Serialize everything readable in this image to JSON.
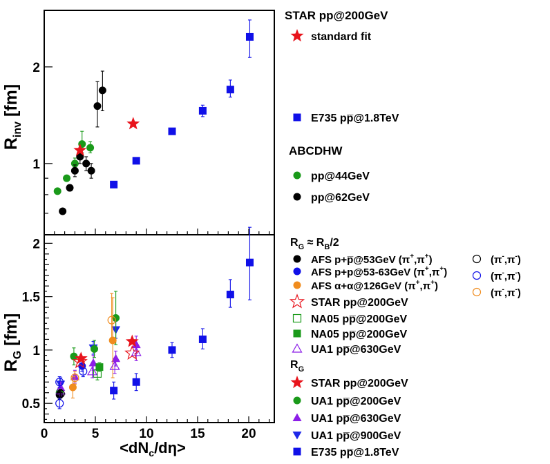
{
  "colors": {
    "star": "#e8141c",
    "green": "#1a9a1a",
    "black": "#000000",
    "blue": "#1010e8",
    "orange": "#f08c1e",
    "violet": "#8c1ee8",
    "vblue": "#1e28e8"
  },
  "chart_data": [
    {
      "type": "scatter",
      "y_scale": "log",
      "xlim": [
        0,
        22.5
      ],
      "ylim": [
        0.6,
        3.0
      ],
      "ylabel_main": "R",
      "ylabel_sub": "inv",
      "ylabel_unit": " [fm]",
      "y_ticks": [
        {
          "value": 1,
          "label": "1"
        },
        {
          "value": 2,
          "label": "2"
        }
      ],
      "series": [
        {
          "key": "e735",
          "marker": "square",
          "color": "blue",
          "points": [
            [
              6.8,
              0.86,
              0,
              0
            ],
            [
              9.0,
              1.02,
              0.02,
              0.02
            ],
            [
              12.5,
              1.26,
              0.02,
              0.02
            ],
            [
              15.5,
              1.46,
              0.06,
              0.06
            ],
            [
              18.2,
              1.7,
              0.09,
              0.12
            ],
            [
              20.1,
              2.48,
              0.34,
              0.32
            ]
          ]
        },
        {
          "key": "pp44",
          "marker": "circle",
          "color": "green",
          "points": [
            [
              1.3,
              0.82,
              0,
              0
            ],
            [
              2.2,
              0.9,
              0,
              0
            ],
            [
              3.0,
              1.0,
              0.03,
              0.04
            ],
            [
              3.7,
              1.15,
              0.07,
              0.11
            ],
            [
              4.5,
              1.12,
              0.04,
              0.05
            ]
          ]
        },
        {
          "key": "pp62",
          "marker": "circle",
          "color": "black",
          "points": [
            [
              1.8,
              0.71,
              0,
              0
            ],
            [
              2.5,
              0.84,
              0,
              0
            ],
            [
              3.0,
              0.95,
              0.04,
              0.04
            ],
            [
              3.5,
              1.05,
              0.05,
              0.05
            ],
            [
              4.1,
              1.0,
              0.05,
              0.05
            ],
            [
              4.6,
              0.95,
              0.05,
              0.05
            ],
            [
              5.2,
              1.51,
              0.21,
              0.29
            ],
            [
              5.7,
              1.69,
              0.23,
              0.25
            ]
          ]
        },
        {
          "key": "star_std",
          "marker": "star",
          "color": "star",
          "points": [
            [
              3.5,
              1.1,
              0,
              0
            ],
            [
              8.7,
              1.33,
              0,
              0
            ]
          ]
        }
      ]
    },
    {
      "type": "scatter",
      "xlim": [
        0,
        22.5
      ],
      "ylim": [
        0.32,
        2.08
      ],
      "xlabel_pre": "<dN",
      "xlabel_sub": "c",
      "xlabel_post": "/dη>",
      "ylabel_main": "R",
      "ylabel_sub": "G",
      "ylabel_unit": " [fm]",
      "x_ticks": [
        {
          "value": 0,
          "label": "0"
        },
        {
          "value": 5,
          "label": "5"
        },
        {
          "value": 10,
          "label": "10"
        },
        {
          "value": 15,
          "label": "15"
        },
        {
          "value": 20,
          "label": "20"
        }
      ],
      "y_ticks": [
        {
          "value": 0.5,
          "label": "0.5"
        },
        {
          "value": 1,
          "label": "1"
        },
        {
          "value": 1.5,
          "label": "1.5"
        },
        {
          "value": 2,
          "label": "2"
        }
      ],
      "series": [
        {
          "key": "e735",
          "marker": "square",
          "color": "blue",
          "points": [
            [
              6.8,
              0.62,
              0.08,
              0.08
            ],
            [
              9.0,
              0.7,
              0.08,
              0.08
            ],
            [
              12.5,
              1.0,
              0.07,
              0.07
            ],
            [
              15.5,
              1.1,
              0.09,
              0.1
            ],
            [
              18.2,
              1.52,
              0.12,
              0.14
            ],
            [
              20.1,
              1.82,
              0.35,
              0.33
            ]
          ]
        },
        {
          "key": "ua1_900",
          "marker": "tri-down",
          "color": "vblue",
          "points": [
            [
              1.6,
              0.68,
              0.06,
              0.06
            ],
            [
              4.8,
              1.02,
              0.06,
              0.06
            ],
            [
              7.0,
              1.19,
              0.08,
              0.08
            ]
          ]
        },
        {
          "key": "ua1_630",
          "marker": "tri-up",
          "color": "violet",
          "points": [
            [
              1.6,
              0.65,
              0.05,
              0.05
            ],
            [
              3.0,
              0.75,
              0.06,
              0.06
            ],
            [
              4.8,
              0.88,
              0.07,
              0.07
            ],
            [
              7.0,
              0.92,
              0.07,
              0.07
            ],
            [
              9.0,
              1.05,
              0.08,
              0.08
            ]
          ]
        },
        {
          "key": "ua1_200",
          "marker": "circle",
          "color": "green",
          "points": [
            [
              1.5,
              0.6,
              0.05,
              0.05
            ],
            [
              2.9,
              0.94,
              0.08,
              0.08
            ],
            [
              4.9,
              1.01,
              0.08,
              0.08
            ],
            [
              7.0,
              1.3,
              0.25,
              0.25
            ]
          ]
        },
        {
          "key": "afs_ap",
          "marker": "circle",
          "color": "orange",
          "points": [
            [
              2.8,
              0.65,
              0.1,
              0.1
            ],
            [
              6.7,
              1.09,
              0.35,
              0.4
            ]
          ]
        },
        {
          "key": "afs_pp53_63",
          "marker": "circle",
          "color": "blue",
          "points": [
            [
              3.7,
              0.85,
              0.05,
              0.05
            ]
          ]
        },
        {
          "key": "afs_pp53",
          "marker": "circle",
          "color": "black",
          "points": [
            [
              1.5,
              0.58,
              0.04,
              0.04
            ]
          ]
        },
        {
          "key": "na05_o",
          "marker": "square-open",
          "color": "green",
          "points": [
            [
              5.2,
              0.78,
              0.06,
              0.06
            ]
          ]
        },
        {
          "key": "na05_f",
          "marker": "square",
          "color": "green",
          "points": [
            [
              5.4,
              0.84,
              0.04,
              0.04
            ]
          ]
        },
        {
          "key": "ua1_630_open",
          "marker": "tri-up-open",
          "color": "violet",
          "points": [
            [
              1.6,
              0.62,
              0.05,
              0.05
            ],
            [
              4.7,
              0.8,
              0.06,
              0.06
            ],
            [
              6.9,
              0.85,
              0.07,
              0.07
            ],
            [
              9.0,
              0.98,
              0.08,
              0.08
            ]
          ]
        },
        {
          "key": "afs_pm_o",
          "marker": "circle-open",
          "color": "black",
          "points": [
            [
              1.6,
              0.59,
              0.04,
              0.04
            ]
          ]
        },
        {
          "key": "afs_pm_b",
          "marker": "circle-open",
          "color": "blue",
          "points": [
            [
              1.5,
              0.5,
              0.05,
              0.05
            ],
            [
              1.5,
              0.7,
              0.05,
              0.05
            ],
            [
              3.8,
              0.8,
              0.05,
              0.05
            ]
          ]
        },
        {
          "key": "afs_pm_orange",
          "marker": "circle-open",
          "color": "orange",
          "points": [
            [
              3.0,
              0.74,
              0.06,
              0.06
            ],
            [
              6.6,
              1.28,
              0.2,
              0.25
            ]
          ]
        },
        {
          "key": "star_open",
          "marker": "star-open",
          "color": "star",
          "points": [
            [
              3.5,
              0.89,
              0,
              0
            ],
            [
              8.6,
              0.97,
              0,
              0
            ]
          ]
        },
        {
          "key": "star_filled",
          "marker": "star",
          "color": "star",
          "points": [
            [
              3.6,
              0.92,
              0,
              0
            ],
            [
              8.6,
              1.08,
              0,
              0
            ]
          ]
        }
      ]
    }
  ],
  "legend": {
    "top_group": {
      "title": "STAR pp@200GeV",
      "entries": [
        {
          "marker": "star",
          "color": "star",
          "label": "standard fit"
        }
      ]
    },
    "e735_entry": {
      "marker": "square",
      "color": "blue",
      "label": "E735 pp̅@1.8TeV"
    },
    "abcdhw": {
      "title": "ABCDHW",
      "entries": [
        {
          "marker": "circle",
          "color": "green",
          "label": "pp@44GeV"
        },
        {
          "marker": "circle",
          "color": "black",
          "label": "pp@62GeV"
        }
      ]
    },
    "rg_half": {
      "title_main": "R",
      "title_sub": "G",
      "title_mid": " ≈ R",
      "title_sub2": "B",
      "title_tail": "/2",
      "entries": [
        {
          "marker": "circle",
          "color": "black",
          "label_main": "AFS p+p̅@53GeV (π",
          "label_sup1": "+",
          "label_mid": ",π",
          "label_sup2": "+",
          "label_tail": ")"
        },
        {
          "marker": "circle",
          "color": "blue",
          "label_main": "AFS p+p@53-63GeV (π",
          "label_sup1": "+",
          "label_mid": ",π",
          "label_sup2": "+",
          "label_tail": ")"
        },
        {
          "marker": "circle",
          "color": "orange",
          "label_main": "AFS α+α@126GeV (π",
          "label_sup1": "+",
          "label_mid": ",π",
          "label_sup2": "+",
          "label_tail": ")"
        },
        {
          "marker": "star-open",
          "color": "star",
          "label": "STAR pp@200GeV"
        },
        {
          "marker": "square-open",
          "color": "green",
          "label": "NA05 pp̅@200GeV"
        },
        {
          "marker": "square",
          "color": "green",
          "label": "NA05 pp̅@200GeV"
        },
        {
          "marker": "tri-up-open",
          "color": "violet",
          "label": "UA1 pp̅@630GeV"
        }
      ],
      "side_entries": [
        {
          "marker": "circle-open",
          "color": "black",
          "label_main": "(π",
          "label_sup1": "-",
          "label_mid": ",π",
          "label_sup2": "-",
          "label_tail": ")"
        },
        {
          "marker": "circle-open",
          "color": "blue",
          "label_main": "(π",
          "label_sup1": "-",
          "label_mid": ",π",
          "label_sup2": "-",
          "label_tail": ")"
        },
        {
          "marker": "circle-open",
          "color": "orange",
          "label_main": "(π",
          "label_sup1": "-",
          "label_mid": ",π",
          "label_sup2": "-",
          "label_tail": ")"
        }
      ]
    },
    "rg": {
      "title_main": "R",
      "title_sub": "G",
      "entries": [
        {
          "marker": "star",
          "color": "star",
          "label": "STAR pp@200GeV"
        },
        {
          "marker": "circle",
          "color": "green",
          "label": "UA1 pp̅@200GeV"
        },
        {
          "marker": "tri-up",
          "color": "violet",
          "label": "UA1 pp̅@630GeV"
        },
        {
          "marker": "tri-down",
          "color": "vblue",
          "label": "UA1 pp̅@900GeV"
        },
        {
          "marker": "square",
          "color": "blue",
          "label": "E735 pp̅@1.8TeV"
        }
      ]
    }
  }
}
